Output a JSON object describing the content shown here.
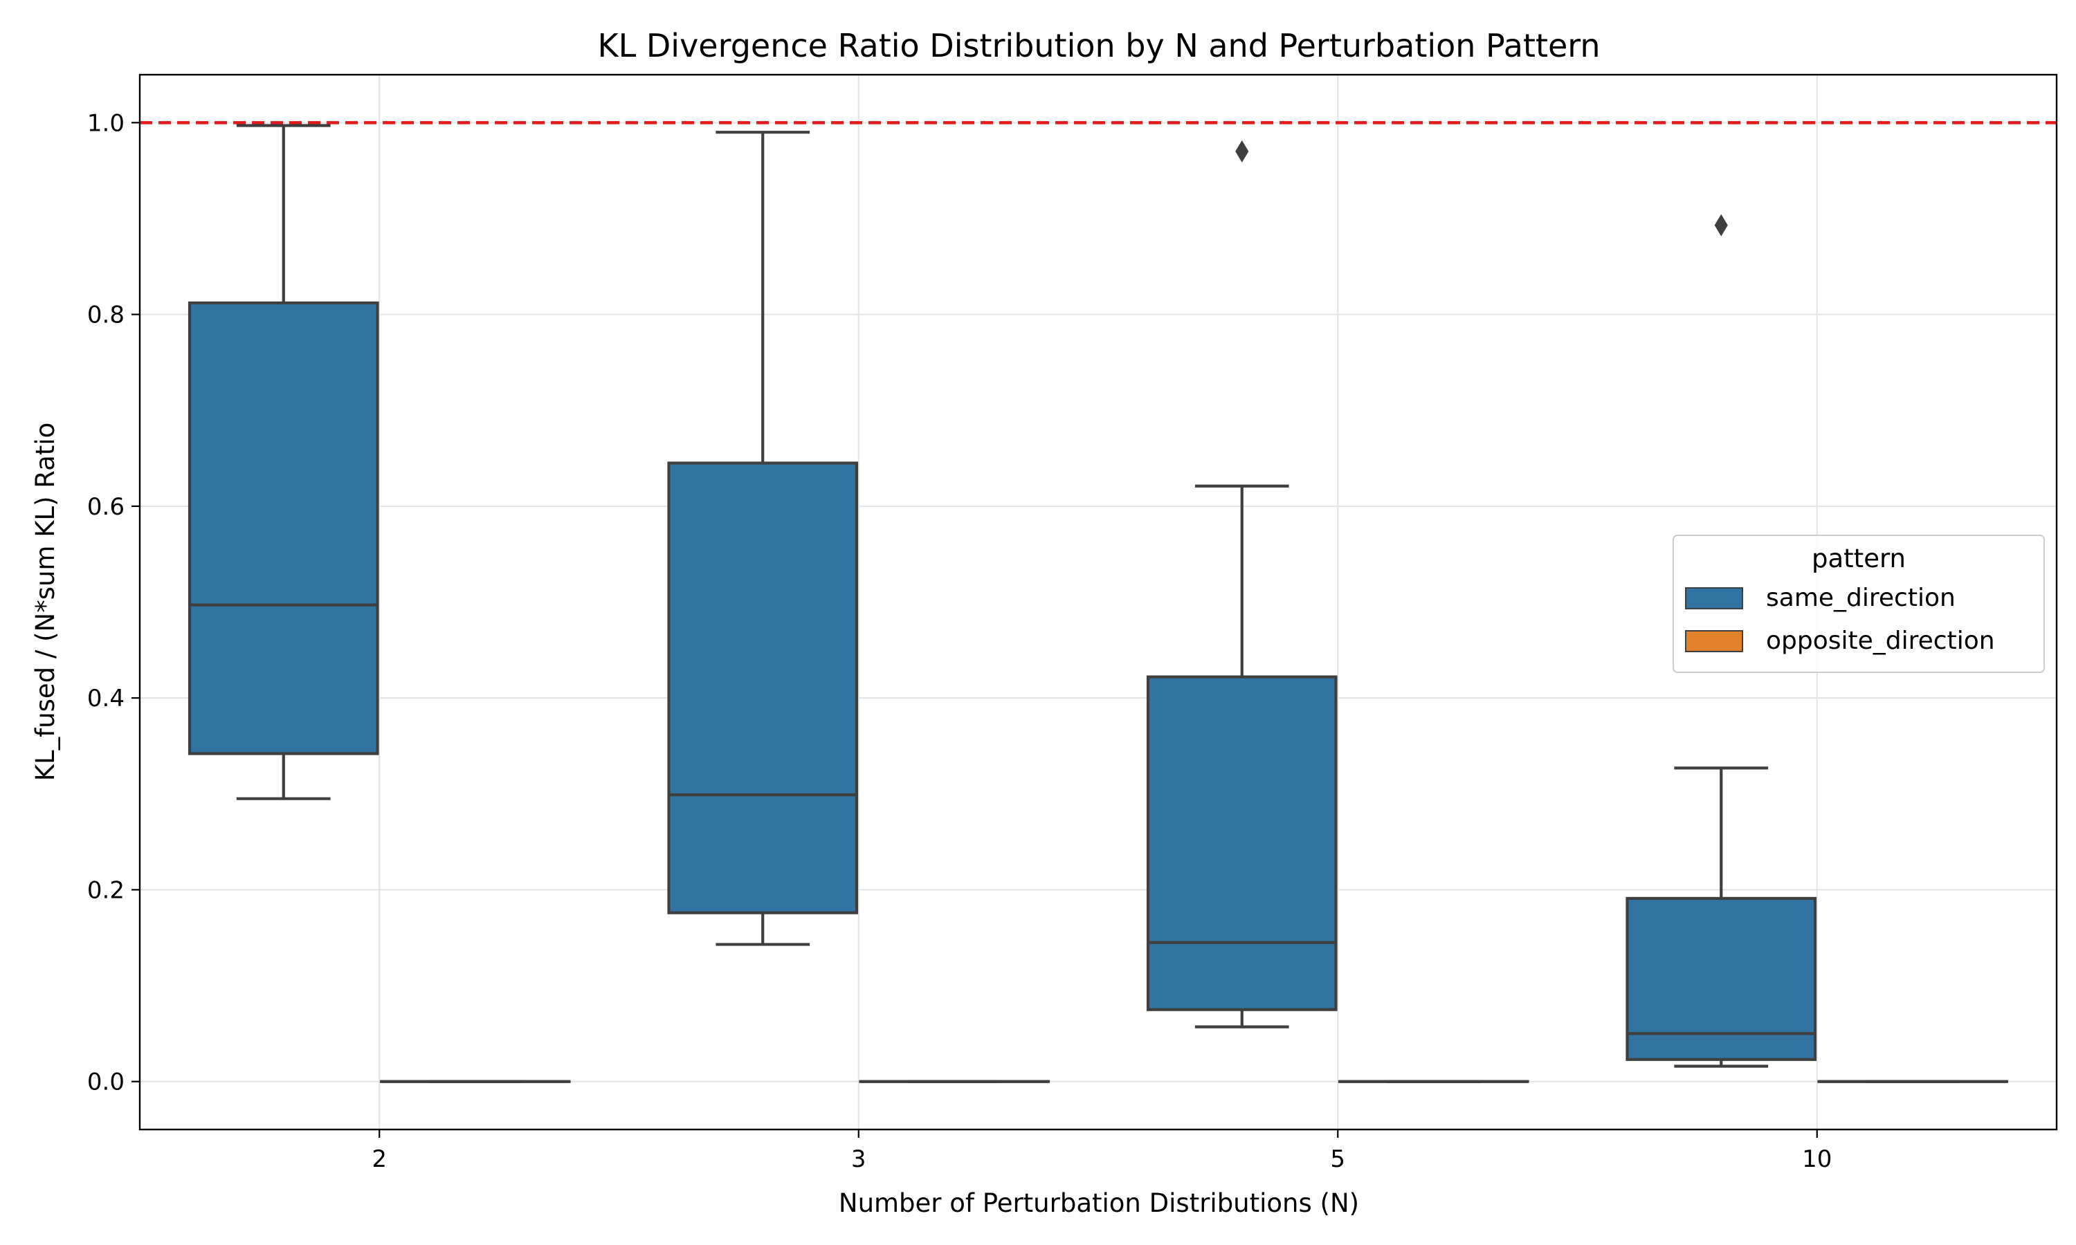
{
  "chart_data": {
    "type": "box",
    "title": "KL Divergence Ratio Distribution by N and Perturbation Pattern",
    "xlabel": "Number of Perturbation Distributions (N)",
    "ylabel": "KL_fused / (N*sum KL) Ratio",
    "categories": [
      "2",
      "3",
      "5",
      "10"
    ],
    "ylim": [
      -0.05,
      1.05
    ],
    "yticks": [
      "0.0",
      "0.2",
      "0.4",
      "0.6",
      "0.8",
      "1.0"
    ],
    "grid": true,
    "reference_line": {
      "y": 1.0,
      "color": "#e31a1c",
      "style": "dashed"
    },
    "legend": {
      "title": "pattern",
      "placement": "center-right"
    },
    "series": [
      {
        "name": "same_direction",
        "color": "#3274a1",
        "boxes": [
          {
            "category": "2",
            "whisker_low": 0.295,
            "q1": 0.342,
            "median": 0.497,
            "q3": 0.812,
            "whisker_high": 0.997,
            "outliers": []
          },
          {
            "category": "3",
            "whisker_low": 0.143,
            "q1": 0.176,
            "median": 0.299,
            "q3": 0.645,
            "whisker_high": 0.99,
            "outliers": []
          },
          {
            "category": "5",
            "whisker_low": 0.057,
            "q1": 0.075,
            "median": 0.145,
            "q3": 0.422,
            "whisker_high": 0.621,
            "outliers": [
              0.97
            ]
          },
          {
            "category": "10",
            "whisker_low": 0.016,
            "q1": 0.023,
            "median": 0.05,
            "q3": 0.191,
            "whisker_high": 0.327,
            "outliers": [
              0.893
            ]
          }
        ]
      },
      {
        "name": "opposite_direction",
        "color": "#e1812c",
        "boxes": [
          {
            "category": "2",
            "whisker_low": 0.0,
            "q1": 0.0,
            "median": 0.0,
            "q3": 0.0,
            "whisker_high": 0.0,
            "outliers": []
          },
          {
            "category": "3",
            "whisker_low": 0.0,
            "q1": 0.0,
            "median": 0.0,
            "q3": 0.0,
            "whisker_high": 0.0,
            "outliers": []
          },
          {
            "category": "5",
            "whisker_low": 0.0,
            "q1": 0.0,
            "median": 0.0,
            "q3": 0.0,
            "whisker_high": 0.0,
            "outliers": []
          },
          {
            "category": "10",
            "whisker_low": 0.0,
            "q1": 0.0,
            "median": 0.0,
            "q3": 0.0,
            "whisker_high": 0.0,
            "outliers": []
          }
        ]
      }
    ]
  }
}
